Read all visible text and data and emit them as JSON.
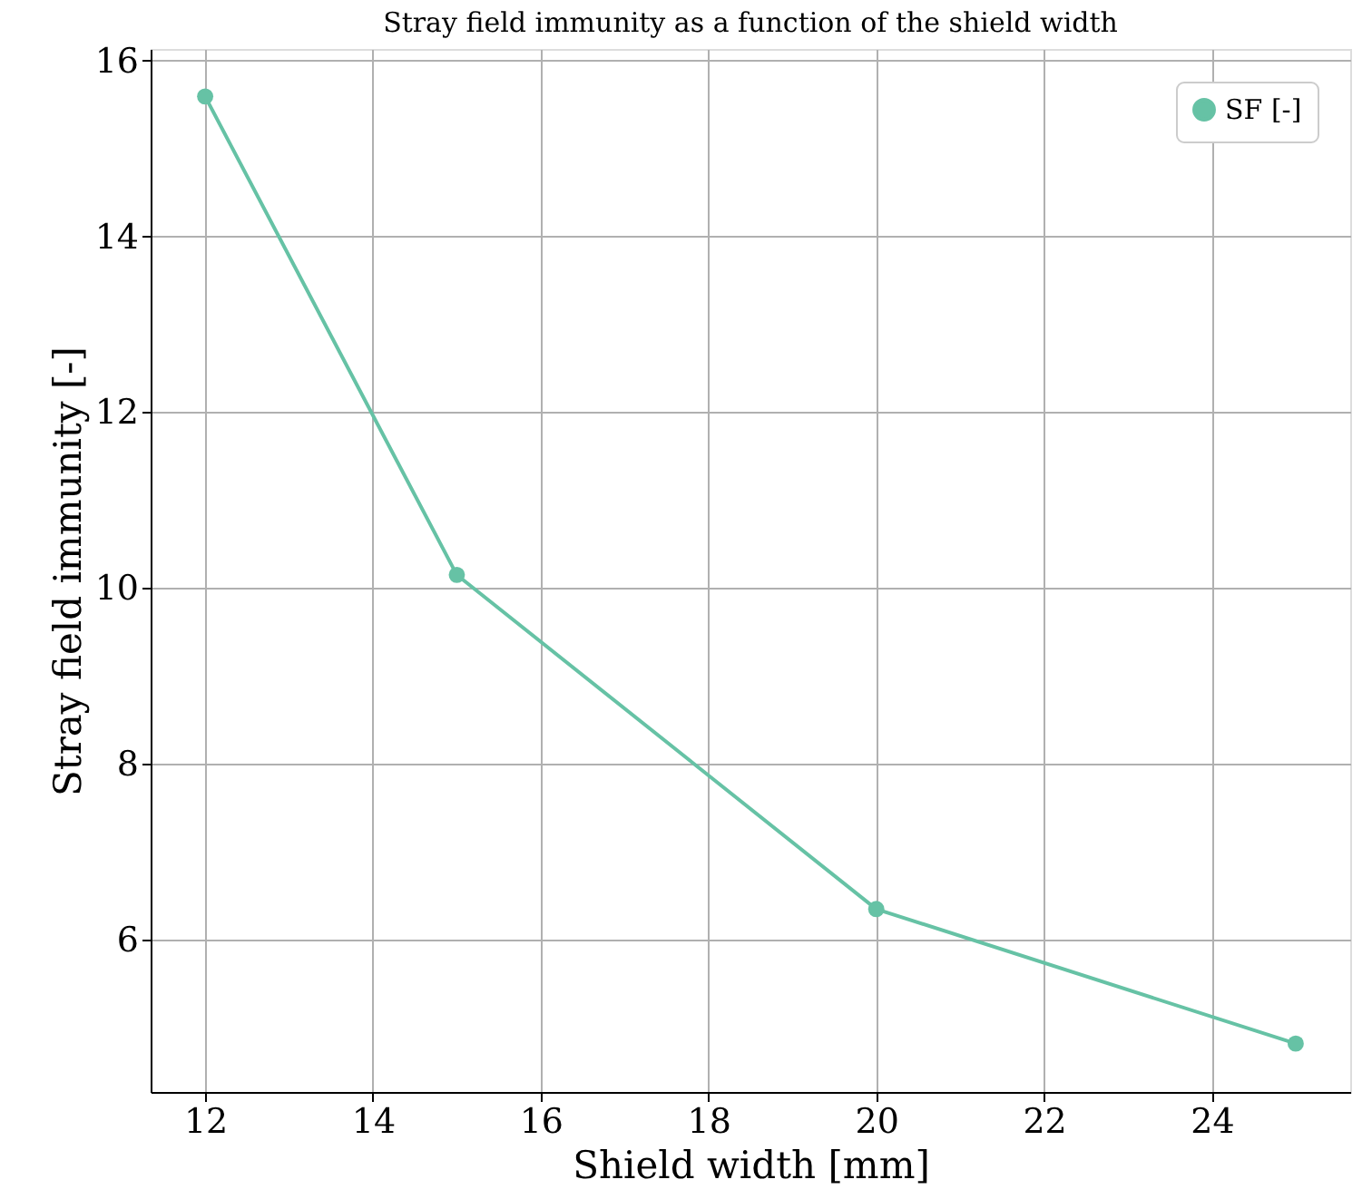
{
  "chart_data": {
    "type": "line",
    "title": "Stray field immunity as a function of the shield width",
    "xlabel": "Shield width [mm]",
    "ylabel": "Stray field immunity [-]",
    "x": [
      12,
      15,
      20,
      25
    ],
    "series": [
      {
        "name": "SF [-]",
        "color": "#66c2a5",
        "values": [
          15.59,
          10.15,
          6.35,
          4.82
        ]
      }
    ],
    "xlim": [
      11.35,
      25.65
    ],
    "ylim": [
      4.27,
      16.13
    ],
    "xticks": [
      12,
      14,
      16,
      18,
      20,
      22,
      24
    ],
    "yticks": [
      6,
      8,
      10,
      12,
      14,
      16
    ],
    "grid": true,
    "legend": "top right",
    "marker": "circle",
    "line_style": "solid"
  }
}
